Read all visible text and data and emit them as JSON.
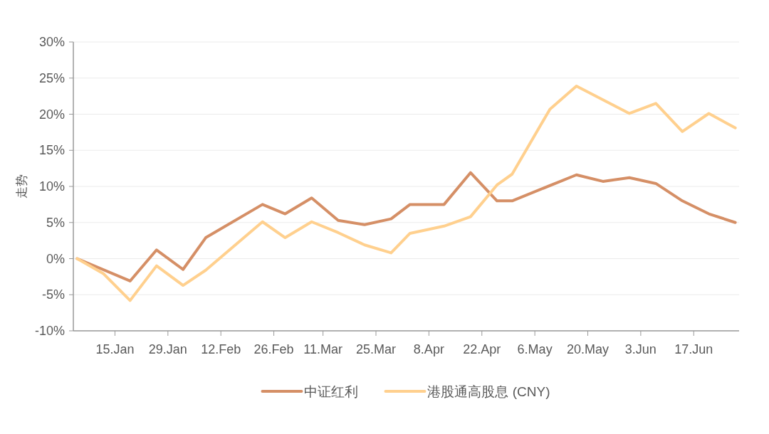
{
  "chart_data": {
    "type": "line",
    "ylabel": "走势",
    "grid": "y",
    "legend": "bottom",
    "xlim": [
      "--01-04",
      "--06-29"
    ],
    "xticks": [
      {
        "value": "--01-15",
        "label": "15.Jan"
      },
      {
        "value": "--01-29",
        "label": "29.Jan"
      },
      {
        "value": "--02-12",
        "label": "12.Feb"
      },
      {
        "value": "--02-26",
        "label": "26.Feb"
      },
      {
        "value": "--03-11",
        "label": "11.Mar"
      },
      {
        "value": "--03-25",
        "label": "25.Mar"
      },
      {
        "value": "--04-08",
        "label": "8.Apr"
      },
      {
        "value": "--04-22",
        "label": "22.Apr"
      },
      {
        "value": "--05-06",
        "label": "6.May"
      },
      {
        "value": "--05-20",
        "label": "20.May"
      },
      {
        "value": "--06-03",
        "label": "3.Jun"
      },
      {
        "value": "--06-17",
        "label": "17.Jun"
      }
    ],
    "ylim": [
      -10,
      30
    ],
    "yticks": [
      {
        "value": -10,
        "label": "-10%"
      },
      {
        "value": -5,
        "label": "-5%"
      },
      {
        "value": 0,
        "label": "0%"
      },
      {
        "value": 5,
        "label": "5%"
      },
      {
        "value": 10,
        "label": "10%"
      },
      {
        "value": 15,
        "label": "15%"
      },
      {
        "value": 20,
        "label": "20%"
      },
      {
        "value": 25,
        "label": "25%"
      },
      {
        "value": 30,
        "label": "30%"
      }
    ],
    "series": [
      {
        "name": "中证红利",
        "color": "#d58f66",
        "x": [
          "--01-05",
          "--01-19",
          "--01-26",
          "--02-02",
          "--02-08",
          "--02-23",
          "--03-01",
          "--03-08",
          "--03-15",
          "--03-22",
          "--03-29",
          "--04-03",
          "--04-12",
          "--04-19",
          "--04-26",
          "--04-30",
          "--05-17",
          "--05-24",
          "--05-31",
          "--06-07",
          "--06-14",
          "--06-21",
          "--06-28"
        ],
        "values": [
          0,
          -3.1,
          1.2,
          -1.5,
          2.9,
          7.5,
          6.2,
          8.4,
          5.3,
          4.7,
          5.5,
          7.5,
          7.5,
          11.9,
          8.0,
          8.0,
          11.6,
          10.7,
          11.2,
          10.4,
          8.0,
          6.2,
          5.0
        ]
      },
      {
        "name": "港股通高股息 (CNY)",
        "color": "#ffd08e",
        "x": [
          "--01-05",
          "--01-12",
          "--01-19",
          "--01-26",
          "--02-02",
          "--02-08",
          "--02-23",
          "--03-01",
          "--03-08",
          "--03-15",
          "--03-22",
          "--03-29",
          "--04-03",
          "--04-12",
          "--04-19",
          "--04-26",
          "--04-30",
          "--05-10",
          "--05-17",
          "--05-31",
          "--06-07",
          "--06-14",
          "--06-21",
          "--06-28"
        ],
        "values": [
          0,
          -2.1,
          -5.8,
          -1.0,
          -3.7,
          -1.6,
          5.1,
          2.9,
          5.1,
          3.6,
          1.9,
          0.8,
          3.5,
          4.5,
          5.8,
          10.2,
          11.7,
          20.7,
          23.9,
          20.1,
          21.5,
          17.6,
          20.1,
          18.1
        ]
      }
    ]
  }
}
